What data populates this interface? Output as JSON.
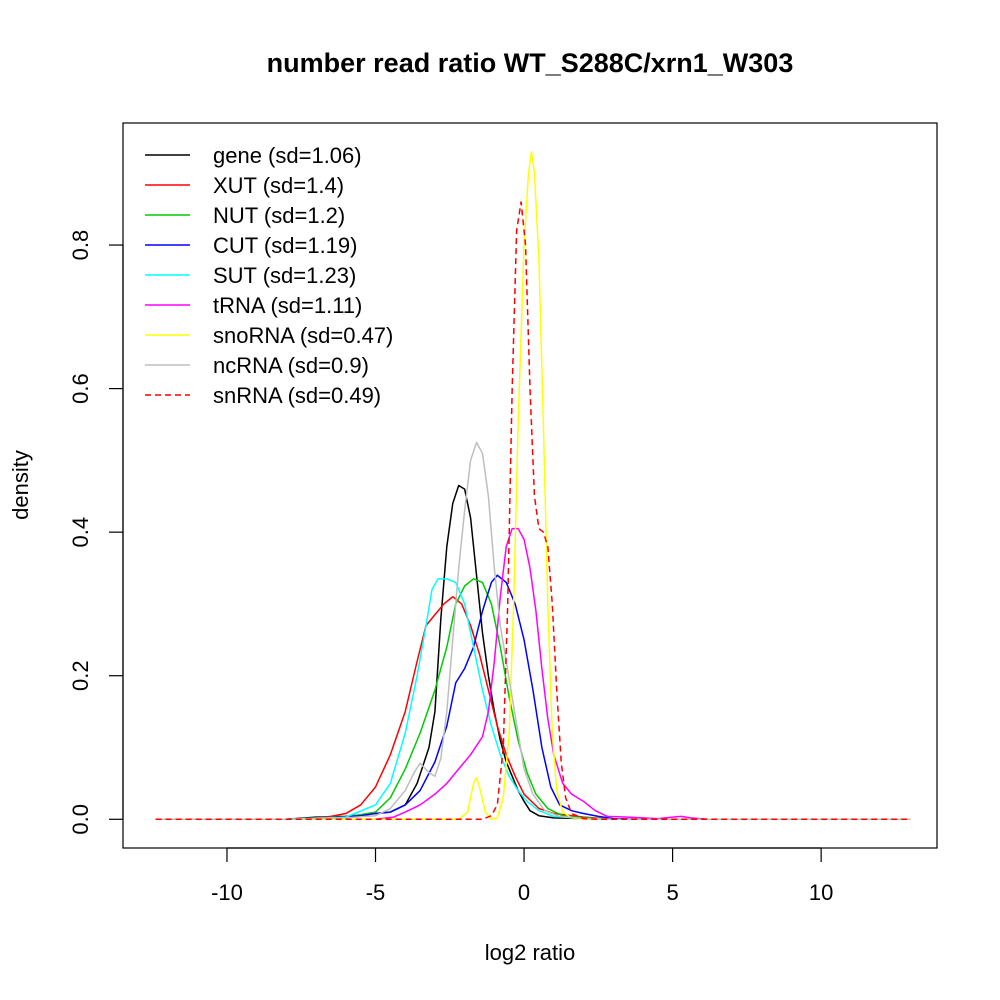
{
  "chart_data": {
    "type": "line",
    "title": "number read ratio WT_S288C/xrn1_W303",
    "xlabel": "log2 ratio",
    "ylabel": "density",
    "xlim": [
      -13.5,
      13.9
    ],
    "ylim": [
      -0.04,
      0.97
    ],
    "x_ticks": [
      -10,
      -5,
      0,
      5,
      10
    ],
    "x_tick_labels": [
      "-10",
      "-5",
      "0",
      "5",
      "10"
    ],
    "y_ticks": [
      0.0,
      0.2,
      0.4,
      0.6,
      0.8
    ],
    "y_tick_labels": [
      "0.0",
      "0.2",
      "0.4",
      "0.6",
      "0.8"
    ],
    "grid": false,
    "legend_position": "top-left",
    "series": [
      {
        "name": "gene (sd=1.06)",
        "color": "#000000",
        "dash": false,
        "points": [
          [
            -12.4,
            0
          ],
          [
            -8,
            0
          ],
          [
            -7,
            0.003
          ],
          [
            -6,
            0.004
          ],
          [
            -5,
            0.008
          ],
          [
            -4.5,
            0.01
          ],
          [
            -4,
            0.02
          ],
          [
            -3.6,
            0.05
          ],
          [
            -3.2,
            0.1
          ],
          [
            -3,
            0.15
          ],
          [
            -2.8,
            0.28
          ],
          [
            -2.6,
            0.38
          ],
          [
            -2.4,
            0.44
          ],
          [
            -2.2,
            0.465
          ],
          [
            -2.0,
            0.46
          ],
          [
            -1.8,
            0.42
          ],
          [
            -1.6,
            0.34
          ],
          [
            -1.4,
            0.26
          ],
          [
            -1.2,
            0.2
          ],
          [
            -1.0,
            0.15
          ],
          [
            -0.8,
            0.11
          ],
          [
            -0.6,
            0.08
          ],
          [
            -0.4,
            0.06
          ],
          [
            -0.2,
            0.04
          ],
          [
            0,
            0.025
          ],
          [
            0.2,
            0.012
          ],
          [
            0.5,
            0.005
          ],
          [
            1,
            0.002
          ],
          [
            2,
            0.001
          ],
          [
            3,
            0
          ],
          [
            13,
            0
          ]
        ]
      },
      {
        "name": "XUT (sd=1.4)",
        "color": "#ff0000",
        "dash": false,
        "points": [
          [
            -12.4,
            0
          ],
          [
            -8,
            0
          ],
          [
            -7,
            0.002
          ],
          [
            -6.5,
            0.004
          ],
          [
            -6,
            0.008
          ],
          [
            -5.5,
            0.02
          ],
          [
            -5,
            0.045
          ],
          [
            -4.5,
            0.09
          ],
          [
            -4,
            0.15
          ],
          [
            -3.6,
            0.22
          ],
          [
            -3.3,
            0.27
          ],
          [
            -3.0,
            0.285
          ],
          [
            -2.7,
            0.3
          ],
          [
            -2.4,
            0.31
          ],
          [
            -2.1,
            0.3
          ],
          [
            -1.8,
            0.27
          ],
          [
            -1.5,
            0.23
          ],
          [
            -1.2,
            0.18
          ],
          [
            -0.9,
            0.13
          ],
          [
            -0.6,
            0.09
          ],
          [
            -0.3,
            0.06
          ],
          [
            0,
            0.035
          ],
          [
            0.5,
            0.015
          ],
          [
            1,
            0.008
          ],
          [
            2,
            0.003
          ],
          [
            3,
            0
          ],
          [
            13,
            0
          ]
        ]
      },
      {
        "name": "NUT (sd=1.2)",
        "color": "#00cc00",
        "dash": false,
        "points": [
          [
            -12.4,
            0
          ],
          [
            -8,
            0
          ],
          [
            -6,
            0.003
          ],
          [
            -5,
            0.01
          ],
          [
            -4.5,
            0.03
          ],
          [
            -4,
            0.07
          ],
          [
            -3.5,
            0.12
          ],
          [
            -3.0,
            0.18
          ],
          [
            -2.6,
            0.24
          ],
          [
            -2.3,
            0.3
          ],
          [
            -2.0,
            0.325
          ],
          [
            -1.7,
            0.335
          ],
          [
            -1.4,
            0.33
          ],
          [
            -1.1,
            0.3
          ],
          [
            -0.8,
            0.24
          ],
          [
            -0.5,
            0.17
          ],
          [
            -0.2,
            0.11
          ],
          [
            0.1,
            0.065
          ],
          [
            0.4,
            0.035
          ],
          [
            0.8,
            0.015
          ],
          [
            1.3,
            0.005
          ],
          [
            2,
            0.002
          ],
          [
            3,
            0
          ],
          [
            13,
            0
          ]
        ]
      },
      {
        "name": "CUT (sd=1.19)",
        "color": "#0000ff",
        "dash": false,
        "points": [
          [
            -12.4,
            0
          ],
          [
            -8,
            0
          ],
          [
            -6.5,
            0.002
          ],
          [
            -5.5,
            0.005
          ],
          [
            -5,
            0.008
          ],
          [
            -4.5,
            0.01
          ],
          [
            -4,
            0.02
          ],
          [
            -3.5,
            0.04
          ],
          [
            -3.0,
            0.08
          ],
          [
            -2.6,
            0.13
          ],
          [
            -2.3,
            0.19
          ],
          [
            -2.0,
            0.21
          ],
          [
            -1.7,
            0.24
          ],
          [
            -1.4,
            0.29
          ],
          [
            -1.1,
            0.33
          ],
          [
            -0.9,
            0.34
          ],
          [
            -0.6,
            0.33
          ],
          [
            -0.3,
            0.3
          ],
          [
            0,
            0.25
          ],
          [
            0.3,
            0.18
          ],
          [
            0.6,
            0.1
          ],
          [
            0.9,
            0.045
          ],
          [
            1.2,
            0.02
          ],
          [
            1.6,
            0.012
          ],
          [
            2,
            0.008
          ],
          [
            2.5,
            0.004
          ],
          [
            3,
            0.001
          ],
          [
            4,
            0
          ],
          [
            13,
            0
          ]
        ]
      },
      {
        "name": "SUT (sd=1.23)",
        "color": "#00ffff",
        "dash": false,
        "points": [
          [
            -12.4,
            0
          ],
          [
            -8,
            0
          ],
          [
            -6,
            0.003
          ],
          [
            -5,
            0.02
          ],
          [
            -4.5,
            0.05
          ],
          [
            -4.0,
            0.12
          ],
          [
            -3.6,
            0.2
          ],
          [
            -3.3,
            0.27
          ],
          [
            -3.1,
            0.32
          ],
          [
            -2.9,
            0.335
          ],
          [
            -2.6,
            0.335
          ],
          [
            -2.3,
            0.33
          ],
          [
            -2.0,
            0.3
          ],
          [
            -1.7,
            0.24
          ],
          [
            -1.4,
            0.18
          ],
          [
            -1.1,
            0.13
          ],
          [
            -0.8,
            0.09
          ],
          [
            -0.5,
            0.06
          ],
          [
            -0.2,
            0.04
          ],
          [
            0.1,
            0.025
          ],
          [
            0.5,
            0.012
          ],
          [
            1,
            0.004
          ],
          [
            2,
            0.001
          ],
          [
            3,
            0
          ],
          [
            13,
            0
          ]
        ]
      },
      {
        "name": "tRNA (sd=1.11)",
        "color": "#ff00ff",
        "dash": false,
        "points": [
          [
            -12.4,
            0
          ],
          [
            -5,
            0
          ],
          [
            -4.4,
            0.003
          ],
          [
            -4,
            0.01
          ],
          [
            -3.5,
            0.02
          ],
          [
            -3,
            0.035
          ],
          [
            -2.6,
            0.05
          ],
          [
            -2.2,
            0.07
          ],
          [
            -1.8,
            0.09
          ],
          [
            -1.4,
            0.115
          ],
          [
            -1.2,
            0.15
          ],
          [
            -1.0,
            0.22
          ],
          [
            -0.8,
            0.31
          ],
          [
            -0.6,
            0.38
          ],
          [
            -0.4,
            0.405
          ],
          [
            -0.2,
            0.405
          ],
          [
            0,
            0.39
          ],
          [
            0.2,
            0.35
          ],
          [
            0.4,
            0.29
          ],
          [
            0.6,
            0.21
          ],
          [
            0.8,
            0.14
          ],
          [
            1.0,
            0.09
          ],
          [
            1.3,
            0.05
          ],
          [
            1.6,
            0.035
          ],
          [
            2.0,
            0.025
          ],
          [
            2.4,
            0.012
          ],
          [
            2.8,
            0.004
          ],
          [
            3.5,
            0.003
          ],
          [
            4.0,
            0.002
          ],
          [
            4.5,
            0.001
          ],
          [
            5.0,
            0.003
          ],
          [
            5.3,
            0.004
          ],
          [
            5.6,
            0.002
          ],
          [
            6.2,
            0
          ],
          [
            13,
            0
          ]
        ]
      },
      {
        "name": "snoRNA (sd=0.47)",
        "color": "#ffff00",
        "dash": false,
        "points": [
          [
            -12.4,
            0
          ],
          [
            -2.2,
            0
          ],
          [
            -1.9,
            0.01
          ],
          [
            -1.7,
            0.05
          ],
          [
            -1.6,
            0.058
          ],
          [
            -1.5,
            0.045
          ],
          [
            -1.3,
            0.01
          ],
          [
            -1.1,
            0
          ],
          [
            -0.9,
            0.002
          ],
          [
            -0.7,
            0.03
          ],
          [
            -0.5,
            0.12
          ],
          [
            -0.35,
            0.3
          ],
          [
            -0.2,
            0.55
          ],
          [
            0,
            0.8
          ],
          [
            0.15,
            0.9
          ],
          [
            0.25,
            0.93
          ],
          [
            0.35,
            0.9
          ],
          [
            0.5,
            0.78
          ],
          [
            0.65,
            0.55
          ],
          [
            0.8,
            0.3
          ],
          [
            0.95,
            0.12
          ],
          [
            1.1,
            0.04
          ],
          [
            1.3,
            0.01
          ],
          [
            1.6,
            0.002
          ],
          [
            2,
            0
          ],
          [
            13,
            0
          ]
        ]
      },
      {
        "name": "ncRNA (sd=0.9)",
        "color": "#bebebe",
        "dash": false,
        "points": [
          [
            -12.4,
            0
          ],
          [
            -8,
            0
          ],
          [
            -6,
            0.002
          ],
          [
            -5,
            0.005
          ],
          [
            -4.5,
            0.015
          ],
          [
            -4,
            0.04
          ],
          [
            -3.7,
            0.065
          ],
          [
            -3.5,
            0.078
          ],
          [
            -3.2,
            0.065
          ],
          [
            -3.0,
            0.06
          ],
          [
            -2.8,
            0.085
          ],
          [
            -2.6,
            0.15
          ],
          [
            -2.4,
            0.25
          ],
          [
            -2.2,
            0.35
          ],
          [
            -2.0,
            0.43
          ],
          [
            -1.8,
            0.5
          ],
          [
            -1.6,
            0.525
          ],
          [
            -1.4,
            0.51
          ],
          [
            -1.2,
            0.45
          ],
          [
            -1.0,
            0.35
          ],
          [
            -0.8,
            0.27
          ],
          [
            -0.6,
            0.22
          ],
          [
            -0.4,
            0.17
          ],
          [
            -0.2,
            0.12
          ],
          [
            0,
            0.07
          ],
          [
            0.3,
            0.035
          ],
          [
            0.7,
            0.012
          ],
          [
            1.2,
            0.004
          ],
          [
            2,
            0.001
          ],
          [
            3,
            0
          ],
          [
            13,
            0
          ]
        ]
      },
      {
        "name": "snRNA (sd=0.49)",
        "color": "#ff0000",
        "dash": true,
        "points": [
          [
            -12.4,
            0
          ],
          [
            -1.4,
            0
          ],
          [
            -1.1,
            0.005
          ],
          [
            -0.9,
            0.02
          ],
          [
            -0.7,
            0.1
          ],
          [
            -0.55,
            0.3
          ],
          [
            -0.4,
            0.6
          ],
          [
            -0.25,
            0.82
          ],
          [
            -0.1,
            0.86
          ],
          [
            0.05,
            0.8
          ],
          [
            0.2,
            0.6
          ],
          [
            0.35,
            0.45
          ],
          [
            0.5,
            0.405
          ],
          [
            0.65,
            0.4
          ],
          [
            0.8,
            0.38
          ],
          [
            0.95,
            0.3
          ],
          [
            1.1,
            0.18
          ],
          [
            1.25,
            0.08
          ],
          [
            1.4,
            0.03
          ],
          [
            1.6,
            0.008
          ],
          [
            2,
            0.001
          ],
          [
            2.5,
            0
          ],
          [
            13,
            0
          ]
        ]
      }
    ]
  }
}
